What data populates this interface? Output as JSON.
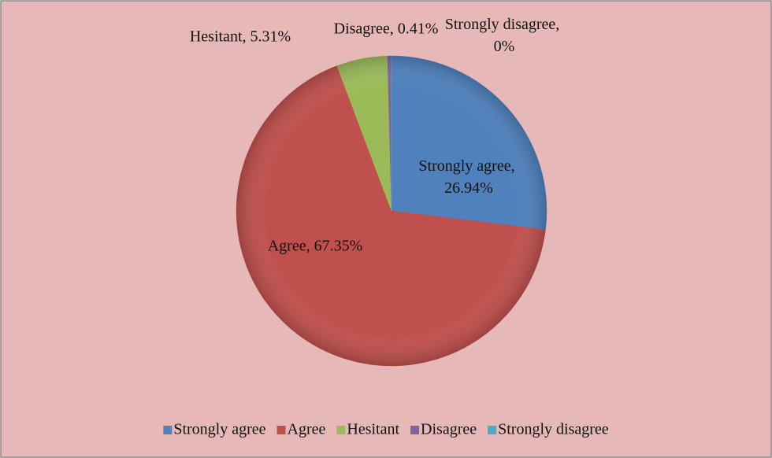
{
  "chart_data": {
    "type": "pie",
    "categories": [
      "Strongly agree",
      "Agree",
      "Hesitant",
      "Disagree",
      "Strongly disagree"
    ],
    "values": [
      26.94,
      67.35,
      5.31,
      0.41,
      0
    ],
    "value_labels": [
      "Strongly agree, 26.94%",
      "Agree, 67.35%",
      "Hesitant, 5.31%",
      "Disagree, 0.41%",
      "Strongly disagree, 0%"
    ],
    "colors": [
      "#4f81bd",
      "#c0504d",
      "#9bbb59",
      "#8064a2",
      "#4bacc6"
    ],
    "legend": "bottom"
  }
}
